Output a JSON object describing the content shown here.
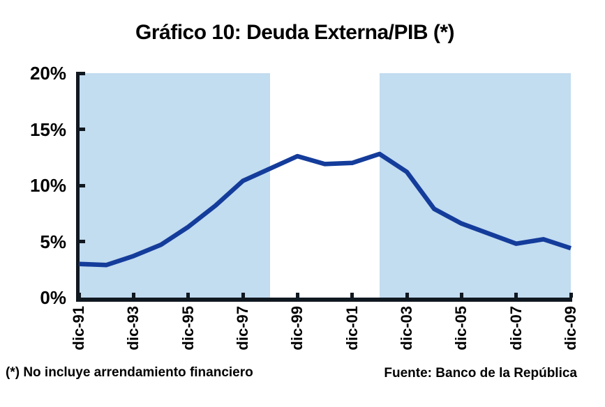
{
  "title": "Gráfico 10: Deuda Externa/PIB (*)",
  "footnote": "(*) No incluye arrendamiento financiero",
  "source": "Fuente: Banco de la República",
  "colors": {
    "line": "#143C9B",
    "band": "#C2DCF0",
    "axis": "#101820",
    "text": "#000000"
  },
  "chart_data": {
    "type": "line",
    "title": "Gráfico 10: Deuda Externa/PIB (*)",
    "series_name": "Deuda Externa/PIB",
    "categories": [
      "dic-91",
      "dic-92",
      "dic-93",
      "dic-94",
      "dic-95",
      "dic-96",
      "dic-97",
      "dic-98",
      "dic-99",
      "dic-00",
      "dic-01",
      "dic-02",
      "dic-03",
      "dic-04",
      "dic-05",
      "dic-06",
      "dic-07",
      "dic-08",
      "dic-09"
    ],
    "values": [
      3.0,
      2.9,
      3.7,
      4.7,
      6.3,
      8.2,
      10.4,
      11.5,
      12.6,
      11.9,
      12.0,
      12.8,
      11.2,
      7.9,
      6.6,
      5.7,
      4.8,
      5.2,
      4.4
    ],
    "unit": "%",
    "xlabel": "",
    "ylabel": "",
    "ylim": [
      0,
      20
    ],
    "y_ticks": [
      0,
      5,
      10,
      15,
      20
    ],
    "y_tick_labels": [
      "0%",
      "5%",
      "10%",
      "15%",
      "20%"
    ],
    "x_tick_labels": [
      "dic-91",
      "dic-93",
      "dic-95",
      "dic-97",
      "dic-99",
      "dic-01",
      "dic-03",
      "dic-05",
      "dic-07",
      "dic-09"
    ],
    "grid": false,
    "legend": "none",
    "shaded_bands": [
      {
        "from": "dic-91",
        "to": "dic-98"
      },
      {
        "from": "dic-02",
        "to": "dic-09"
      }
    ],
    "footnote": "(*) No incluye arrendamiento financiero",
    "source": "Fuente: Banco de la República"
  }
}
